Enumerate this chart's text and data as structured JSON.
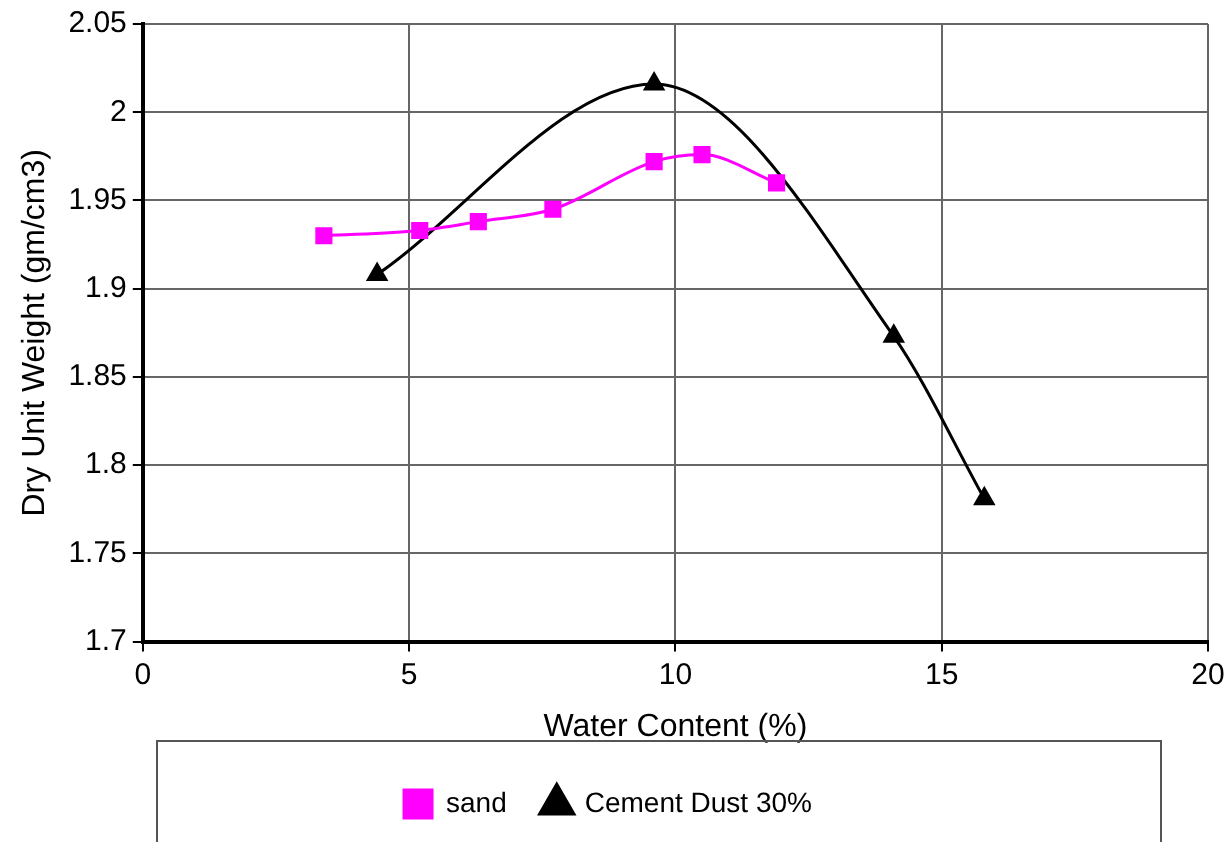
{
  "chart_data": {
    "type": "line",
    "xlabel": "Water Content (%)",
    "ylabel": "Dry Unit Weight (gm/cm3)",
    "xlim": [
      0,
      20
    ],
    "xticks": [
      0,
      5,
      10,
      15,
      20
    ],
    "ylim": [
      1.7,
      2.05
    ],
    "yticks": [
      {
        "value": 1.7,
        "label": "1.7"
      },
      1.75,
      {
        "value": 1.8,
        "label": "1.8"
      },
      1.85,
      {
        "value": 1.9,
        "label": "1.9"
      },
      1.95,
      {
        "value": 2,
        "label": "2"
      },
      2.05
    ],
    "grid": true,
    "legend": "bottom",
    "line_style": "solid",
    "series": [
      {
        "name": "sand",
        "color": "#ff00ff",
        "marker": "square",
        "x": [
          3.4,
          5.2,
          6.3,
          7.7,
          9.6,
          10.5,
          11.9
        ],
        "values": [
          1.93,
          1.933,
          1.938,
          1.945,
          1.972,
          1.976,
          1.96
        ]
      },
      {
        "name": "Cement Dust 30%",
        "color": "#000000",
        "marker": "triangle",
        "x": [
          4.4,
          9.6,
          14.1,
          15.8
        ],
        "values": [
          1.908,
          2.016,
          1.873,
          1.781
        ]
      }
    ]
  }
}
